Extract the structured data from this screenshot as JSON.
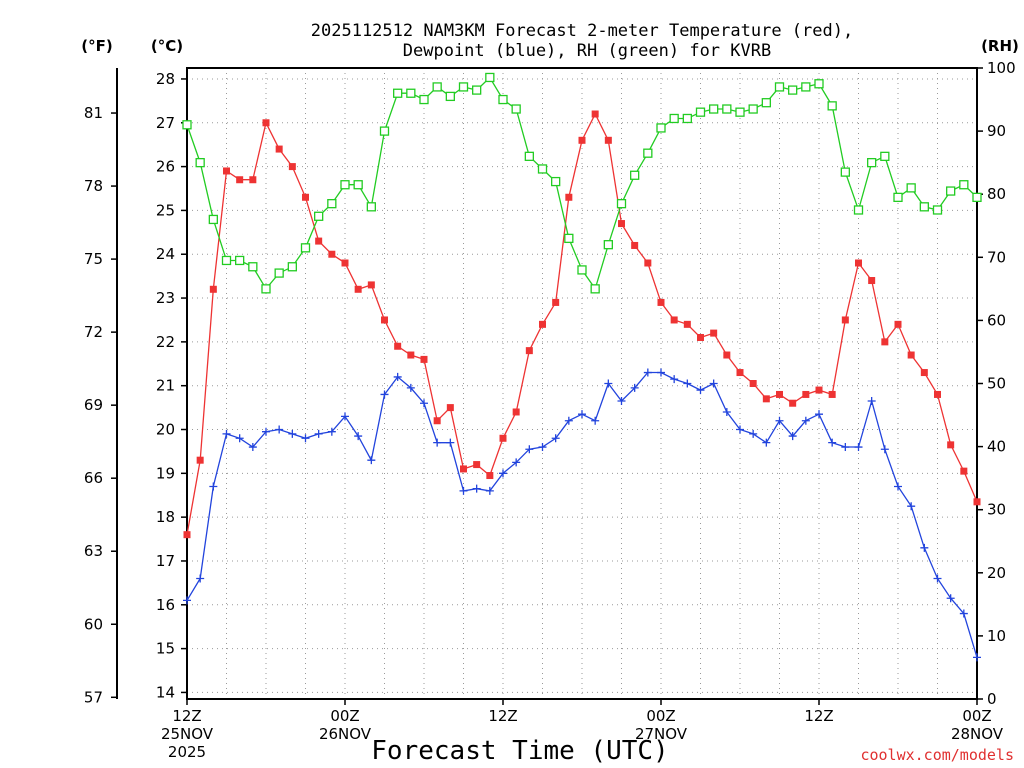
{
  "chart_data": {
    "type": "line",
    "title_line1": "2025112512 NAM3KM Forecast 2-meter Temperature (red),",
    "title_line2": "Dewpoint (blue), RH (green) for KVRB",
    "left_outer_unit": "(°F)",
    "left_inner_unit": "(°C)",
    "right_unit": "(RH)",
    "xlabel": "Forecast Time (UTC)",
    "credit": "coolwx.com/models",
    "x_range_hours": [
      0,
      60
    ],
    "celsius_range": [
      13.85,
      28.25
    ],
    "rh_range": [
      0,
      100
    ],
    "celsius_ticks": [
      "14",
      "15",
      "16",
      "17",
      "18",
      "19",
      "20",
      "21",
      "22",
      "23",
      "24",
      "25",
      "26",
      "27",
      "28"
    ],
    "fahrenheit_ticks": [
      "57",
      "60",
      "63",
      "66",
      "69",
      "72",
      "75",
      "78",
      "81"
    ],
    "rh_ticks": [
      "0",
      "10",
      "20",
      "30",
      "40",
      "50",
      "60",
      "70",
      "80",
      "90",
      "100"
    ],
    "x_ticks": [
      {
        "hour": 0,
        "line1": "12Z",
        "line2": "25NOV",
        "line3": "2025"
      },
      {
        "hour": 12,
        "line1": "00Z",
        "line2": "26NOV",
        "line3": ""
      },
      {
        "hour": 24,
        "line1": "12Z",
        "line2": "",
        "line3": ""
      },
      {
        "hour": 36,
        "line1": "00Z",
        "line2": "27NOV",
        "line3": ""
      },
      {
        "hour": 48,
        "line1": "12Z",
        "line2": "",
        "line3": ""
      },
      {
        "hour": 60,
        "line1": "00Z",
        "line2": "28NOV",
        "line3": ""
      }
    ],
    "series": [
      {
        "name": "2-meter Temperature",
        "unit": "C",
        "color": "#ee3333",
        "marker": "filled-square",
        "values": [
          17.6,
          19.3,
          23.2,
          25.9,
          25.7,
          25.7,
          27.0,
          26.4,
          26.0,
          25.3,
          24.3,
          24.0,
          23.8,
          23.2,
          23.3,
          22.5,
          21.9,
          21.7,
          21.6,
          20.2,
          20.5,
          19.1,
          19.2,
          18.95,
          19.8,
          20.4,
          21.8,
          22.4,
          22.9,
          25.3,
          26.6,
          27.2,
          26.6,
          24.7,
          24.2,
          23.8,
          22.9,
          22.5,
          22.4,
          22.1,
          22.2,
          21.7,
          21.3,
          21.05,
          20.7,
          20.8,
          20.6,
          20.8,
          20.9,
          20.8,
          22.5,
          23.8,
          23.4,
          22.0,
          22.4,
          21.7,
          21.3,
          20.8,
          19.65,
          19.05,
          18.35
        ]
      },
      {
        "name": "Dewpoint",
        "unit": "C",
        "color": "#2244dd",
        "marker": "plus",
        "values": [
          16.1,
          16.6,
          18.7,
          19.9,
          19.8,
          19.6,
          19.95,
          20.0,
          19.9,
          19.8,
          19.9,
          19.95,
          20.3,
          19.85,
          19.3,
          20.8,
          21.2,
          20.95,
          20.6,
          19.7,
          19.7,
          18.6,
          18.65,
          18.6,
          19.0,
          19.25,
          19.55,
          19.6,
          19.8,
          20.2,
          20.35,
          20.2,
          21.05,
          20.65,
          20.95,
          21.3,
          21.3,
          21.15,
          21.05,
          20.9,
          21.05,
          20.4,
          20.0,
          19.9,
          19.7,
          20.2,
          19.85,
          20.2,
          20.35,
          19.7,
          19.6,
          19.6,
          20.65,
          19.55,
          18.7,
          18.25,
          17.3,
          16.6,
          16.15,
          15.8,
          14.8
        ]
      },
      {
        "name": "RH",
        "unit": "%",
        "color": "#22cc22",
        "marker": "open-square",
        "values": [
          91,
          85,
          76,
          69.5,
          69.5,
          68.5,
          65,
          67.5,
          68.5,
          71.5,
          76.5,
          78.5,
          81.5,
          81.5,
          78,
          90,
          96,
          96,
          95,
          97,
          95.5,
          97,
          96.5,
          98.5,
          95,
          93.5,
          86,
          84,
          82,
          73,
          68,
          65,
          72,
          78.5,
          83,
          86.5,
          90.5,
          92,
          92,
          93,
          93.5,
          93.5,
          93,
          93.5,
          94.5,
          97,
          96.5,
          97,
          97.5,
          94,
          83.5,
          77.5,
          85,
          86,
          79.5,
          81,
          78,
          77.5,
          80.5,
          81.5,
          79.5
        ]
      }
    ]
  }
}
